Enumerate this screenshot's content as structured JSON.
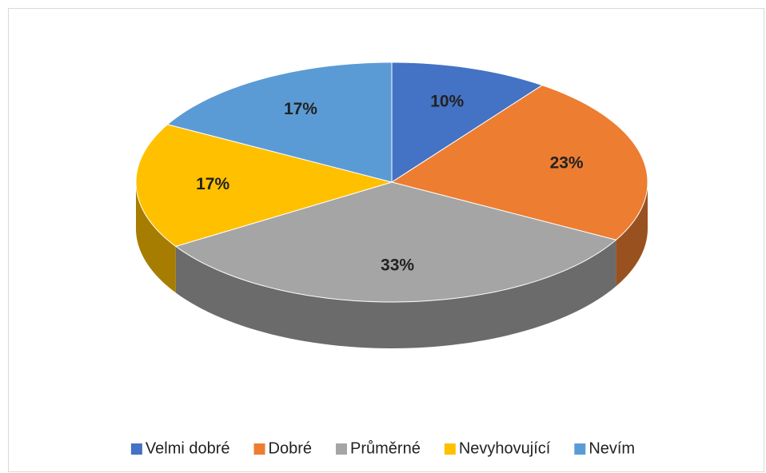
{
  "chart_data": {
    "type": "pie",
    "categories": [
      "Velmi dobré",
      "Dobré",
      "Průměrné",
      "Nevyhovující",
      "Nevím"
    ],
    "values": [
      10,
      23,
      33,
      17,
      17
    ],
    "value_labels": [
      "10%",
      "23%",
      "33%",
      "17%",
      "17%"
    ],
    "colors": [
      "#4472c4",
      "#ed7d31",
      "#a5a5a5",
      "#ffc000",
      "#5b9bd5"
    ],
    "legend": "bottom"
  }
}
